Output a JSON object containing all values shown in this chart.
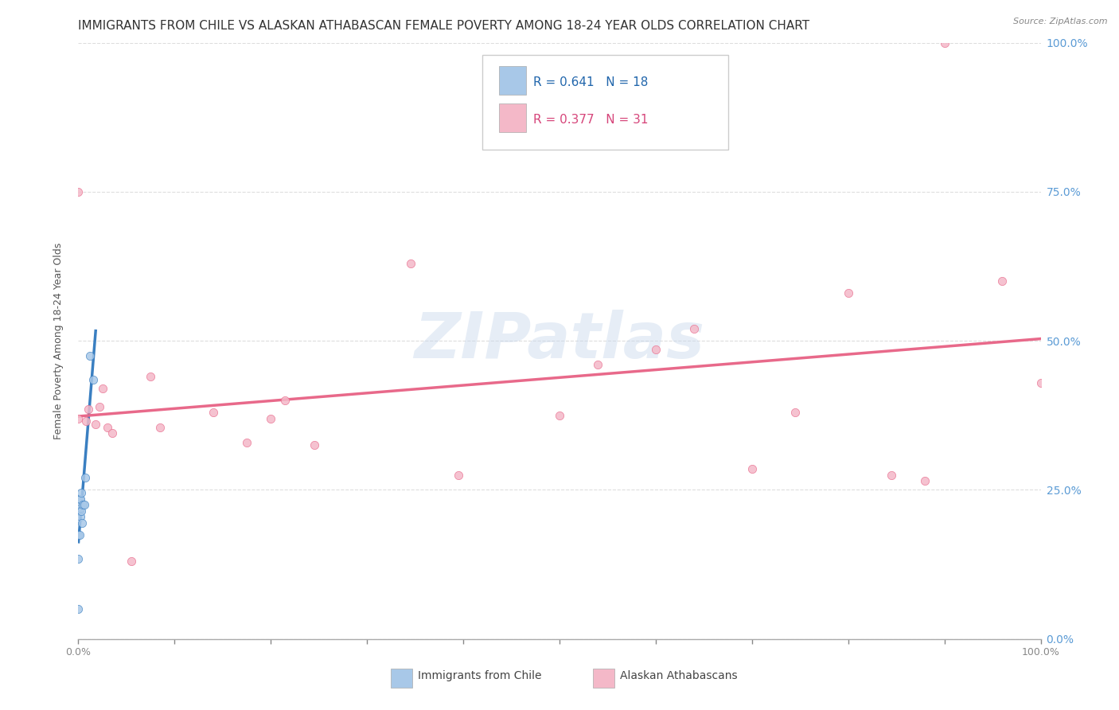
{
  "title": "IMMIGRANTS FROM CHILE VS ALASKAN ATHABASCAN FEMALE POVERTY AMONG 18-24 YEAR OLDS CORRELATION CHART",
  "source": "Source: ZipAtlas.com",
  "ylabel": "Female Poverty Among 18-24 Year Olds",
  "watermark": "ZIPatlas",
  "chile_color": "#a8c8e8",
  "athabascan_color": "#f4b8c8",
  "chile_line_color": "#3a7fc1",
  "athabascan_line_color": "#e8698a",
  "chile_R": 0.641,
  "chile_N": 18,
  "athabascan_R": 0.377,
  "athabascan_N": 31,
  "background_color": "#ffffff",
  "grid_color": "#e0e0e0",
  "right_axis_color": "#5b9bd5",
  "title_fontsize": 11,
  "axis_label_fontsize": 9,
  "tick_fontsize": 9,
  "legend_fontsize": 11,
  "legend_R_color_chile": "#2166ac",
  "legend_R_color_ath": "#d6457a",
  "chile_scatter_x": [
    0.0,
    0.0,
    0.0,
    0.0,
    0.001,
    0.001,
    0.001,
    0.002,
    0.002,
    0.002,
    0.003,
    0.003,
    0.004,
    0.005,
    0.006,
    0.007,
    0.012,
    0.015
  ],
  "chile_scatter_y": [
    0.05,
    0.135,
    0.175,
    0.215,
    0.175,
    0.215,
    0.235,
    0.205,
    0.22,
    0.235,
    0.215,
    0.245,
    0.195,
    0.225,
    0.225,
    0.27,
    0.475,
    0.435
  ],
  "athabascan_scatter_x": [
    0.0,
    0.0,
    0.008,
    0.01,
    0.018,
    0.022,
    0.025,
    0.03,
    0.035,
    0.055,
    0.075,
    0.085,
    0.14,
    0.175,
    0.2,
    0.215,
    0.245,
    0.345,
    0.395,
    0.5,
    0.54,
    0.6,
    0.64,
    0.7,
    0.745,
    0.8,
    0.845,
    0.88,
    0.9,
    0.96,
    1.0
  ],
  "athabascan_scatter_y": [
    0.75,
    0.37,
    0.365,
    0.385,
    0.36,
    0.39,
    0.42,
    0.355,
    0.345,
    0.13,
    0.44,
    0.355,
    0.38,
    0.33,
    0.37,
    0.4,
    0.325,
    0.63,
    0.275,
    0.375,
    0.46,
    0.485,
    0.52,
    0.285,
    0.38,
    0.58,
    0.275,
    0.265,
    1.0,
    0.6,
    0.43
  ]
}
